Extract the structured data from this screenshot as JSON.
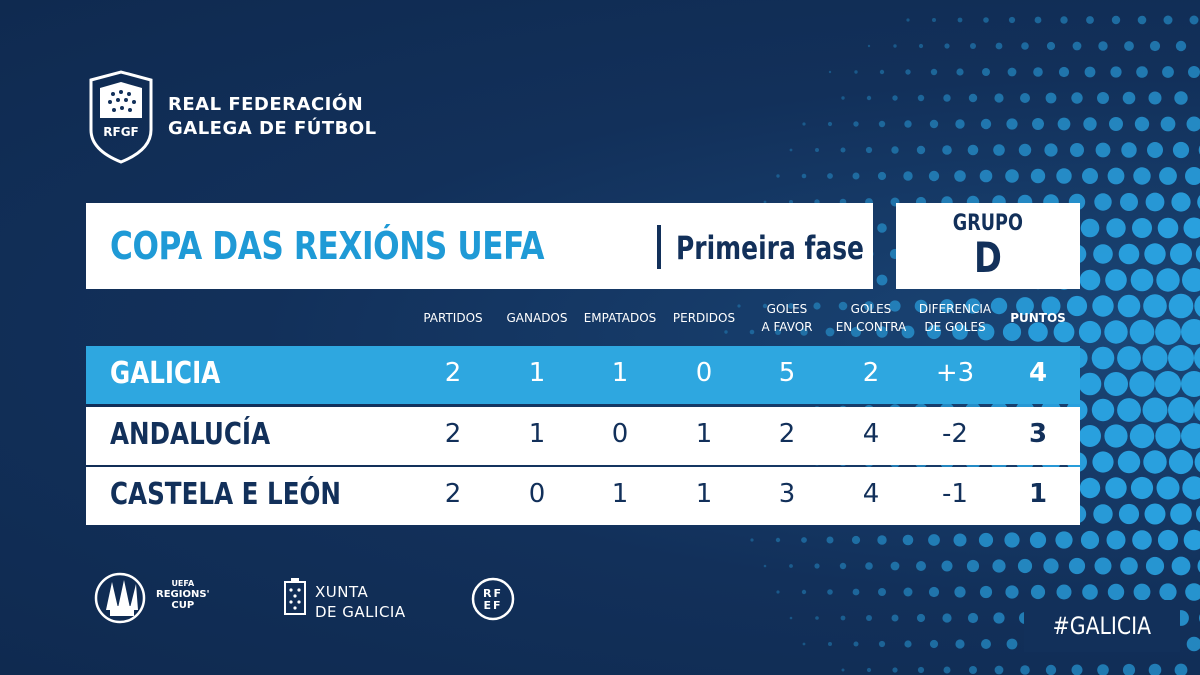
{
  "federation": {
    "logo_abbr": "RFGF",
    "name_line1": "REAL FEDERACIÓN",
    "name_line2": "GALEGA DE FÚTBOL"
  },
  "title": {
    "competition": "COPA DAS REXIÓNS UEFA",
    "phase": "Primeira fase",
    "group_label": "GRUPO",
    "group_letter": "D"
  },
  "columns": [
    {
      "label": "PARTIDOS",
      "bold": false
    },
    {
      "label": "GANADOS",
      "bold": false
    },
    {
      "label": "EMPATADOS",
      "bold": false
    },
    {
      "label": "PERDIDOS",
      "bold": false
    },
    {
      "label": "GOLES\nA FAVOR",
      "bold": false
    },
    {
      "label": "GOLES\nEN CONTRA",
      "bold": false
    },
    {
      "label": "DIFERENCIA\nDE GOLES",
      "bold": false
    },
    {
      "label": "PUNTOS",
      "bold": true
    }
  ],
  "standings": [
    {
      "team": "GALICIA",
      "values": [
        "2",
        "1",
        "1",
        "0",
        "5",
        "2",
        "+3",
        "4"
      ],
      "highlight": true
    },
    {
      "team": "ANDALUCÍA",
      "values": [
        "2",
        "1",
        "0",
        "1",
        "2",
        "4",
        "-2",
        "3"
      ],
      "highlight": false
    },
    {
      "team": "CASTELA E LEÓN",
      "values": [
        "2",
        "0",
        "1",
        "1",
        "3",
        "4",
        "-1",
        "1"
      ],
      "highlight": false
    }
  ],
  "footer": {
    "regions_cup_line1": "UEFA",
    "regions_cup_line2": "REGIONS'",
    "regions_cup_line3": "CUP",
    "xunta_line1": "XUNTA",
    "xunta_line2": "DE GALICIA",
    "rfef_line1": "RF",
    "rfef_line2": "EF",
    "hashtag": "#GALICIA"
  },
  "colors": {
    "background": "#12305a",
    "accent": "#2ea7e0",
    "title_blue": "#1f9ad6",
    "white": "#ffffff"
  }
}
